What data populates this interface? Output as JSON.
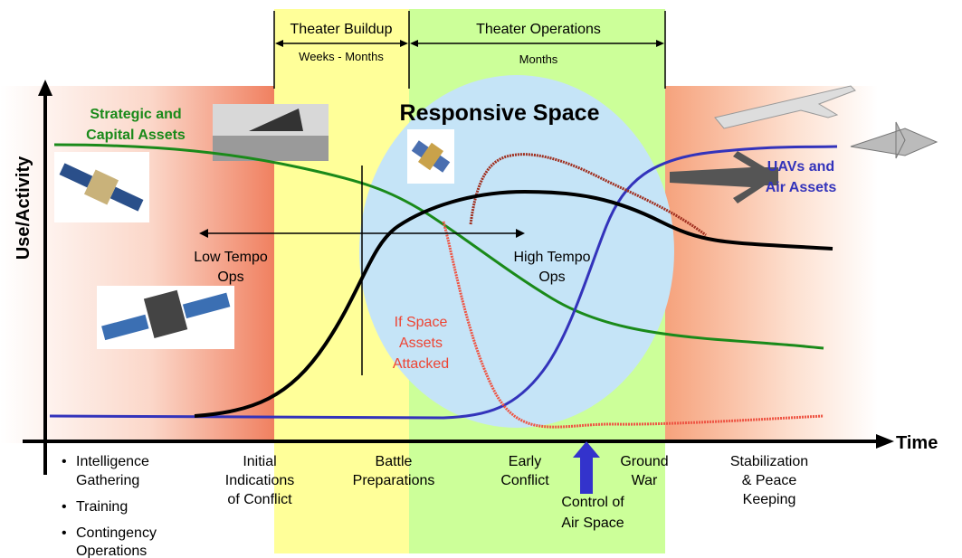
{
  "axes": {
    "y_label": "Use/Activity",
    "x_label": "Time"
  },
  "phases": [
    {
      "title": "Theater Buildup",
      "subtitle": "Weeks - Months"
    },
    {
      "title": "Theater Operations",
      "subtitle": "Months"
    }
  ],
  "region_label": "Responsive Space",
  "curve_labels": {
    "strategic": [
      "Strategic and",
      "Capital Assets"
    ],
    "uavs": [
      "UAVs and",
      "Air Assets"
    ],
    "attacked": [
      "If Space",
      "Assets",
      "Attacked"
    ]
  },
  "tempo": {
    "low": [
      "Low Tempo",
      "Ops"
    ],
    "high": [
      "High Tempo",
      "Ops"
    ]
  },
  "stages": {
    "bullets": [
      [
        "Intelligence",
        "Gathering"
      ],
      [
        "Training"
      ],
      [
        "Contingency",
        "Operations"
      ]
    ],
    "initial": [
      "Initial",
      "Indications",
      "of Conflict"
    ],
    "battle": [
      "Battle",
      "Preparations"
    ],
    "early": [
      "Early",
      "Conflict"
    ],
    "ground": [
      "Ground",
      "War"
    ],
    "control": [
      "Control of",
      "Air Space"
    ],
    "stabilization": [
      "Stabilization",
      "& Peace",
      "Keeping"
    ]
  }
}
